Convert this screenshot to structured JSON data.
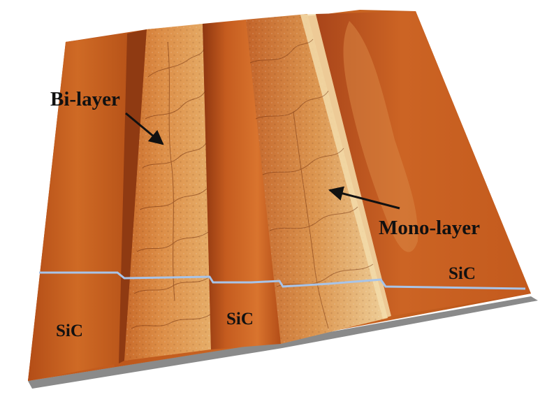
{
  "labels": {
    "bilayer": "Bi-layer",
    "monolayer": "Mono-layer",
    "sic_left": "SiC",
    "sic_middle": "SiC",
    "sic_right": "SiC"
  },
  "colors": {
    "substrate_dark": "#9c3f12",
    "substrate_mid": "#c8601e",
    "substrate_light": "#e08a3c",
    "graphene_light": "#e9c48a",
    "profile_line": "#a8c4e8",
    "base_shadow": "#7a7a7a",
    "text": "#111111"
  }
}
